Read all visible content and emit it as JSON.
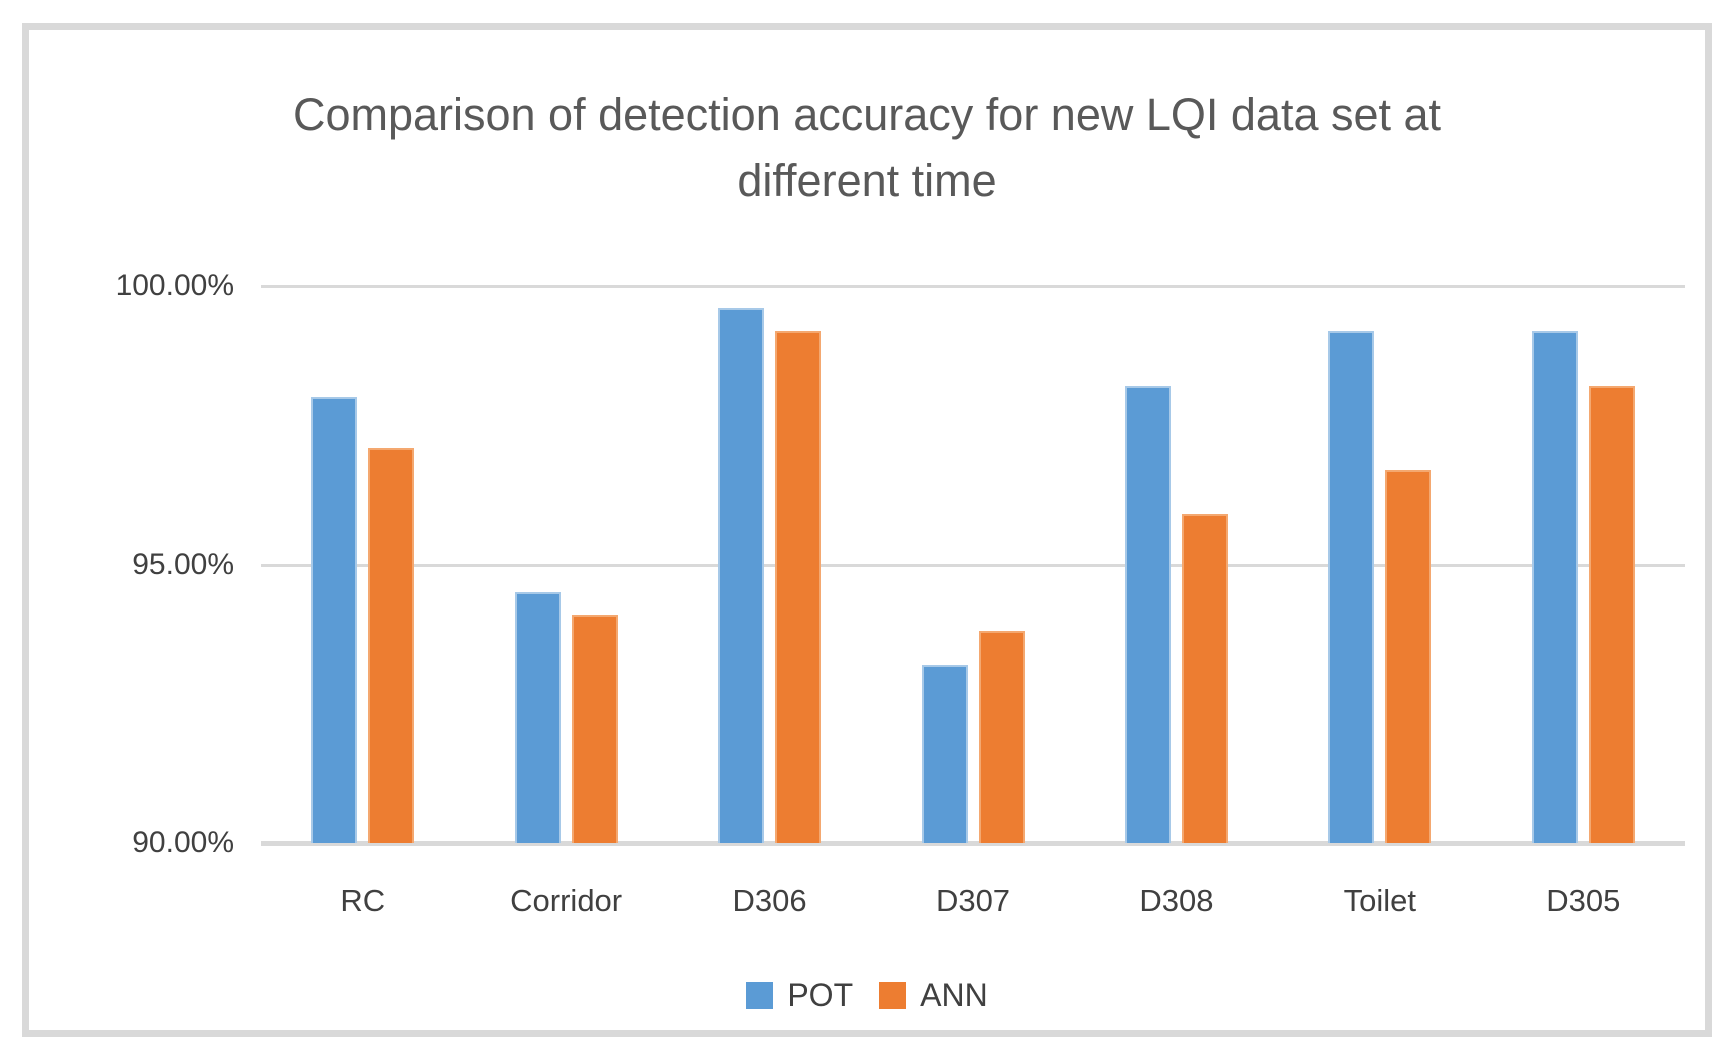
{
  "window": {
    "background_color": "#ffffff",
    "frame_border_color": "#d9d9d9"
  },
  "chart_data": {
    "type": "bar",
    "title": "Comparison of detection accuracy for new LQI data set at different time",
    "title_color": "#595959",
    "text_color": "#404040",
    "categories": [
      "RC",
      "Corridor",
      "D306",
      "D307",
      "D308",
      "Toilet",
      "D305"
    ],
    "series": [
      {
        "name": "POT",
        "color": "#5b9bd5",
        "edge_color": "#a7c9e8",
        "values": [
          98.0,
          94.5,
          99.6,
          93.2,
          98.2,
          99.2,
          99.2
        ]
      },
      {
        "name": "ANN",
        "color": "#ed7d31",
        "edge_color": "#f4a870",
        "values": [
          97.1,
          94.1,
          99.2,
          93.8,
          95.9,
          96.7,
          98.2
        ]
      }
    ],
    "y_axis": {
      "min": 90,
      "max": 100,
      "major_unit": 5,
      "tick_labels": [
        "90.00%",
        "95.00%",
        "100.00%"
      ],
      "format": "0.00%"
    },
    "x_axis_label": "",
    "y_axis_label": "",
    "grid": true,
    "gridline_color": "#d9d9d9",
    "axis_line_color": "#d9d9d9",
    "legend_position": "bottom"
  }
}
